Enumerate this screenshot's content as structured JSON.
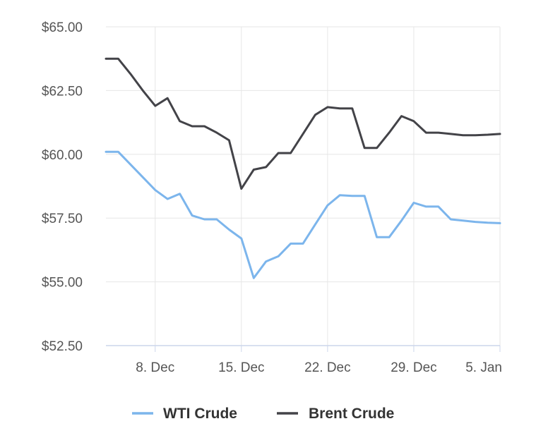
{
  "chart_data": {
    "type": "line",
    "title": "",
    "xlabel": "",
    "ylabel": "",
    "x_ticks": [
      "8. Dec",
      "15. Dec",
      "22. Dec",
      "29. Dec",
      "5. Jan"
    ],
    "x_tick_dates": [
      "2017-12-08",
      "2017-12-15",
      "2017-12-22",
      "2017-12-29",
      "2018-01-05"
    ],
    "x_range": [
      "2017-12-04",
      "2018-01-05"
    ],
    "y_ticks": [
      "$52.50",
      "$55.00",
      "$57.50",
      "$60.00",
      "$62.50",
      "$65.00"
    ],
    "ylim": [
      52.5,
      65
    ],
    "grid": true,
    "legend_position": "bottom-center",
    "x": [
      "2017-12-04",
      "2017-12-05",
      "2017-12-06",
      "2017-12-07",
      "2017-12-08",
      "2017-12-09",
      "2017-12-10",
      "2017-12-11",
      "2017-12-12",
      "2017-12-13",
      "2017-12-14",
      "2017-12-15",
      "2017-12-16",
      "2017-12-17",
      "2017-12-18",
      "2017-12-19",
      "2017-12-20",
      "2017-12-21",
      "2017-12-22",
      "2017-12-23",
      "2017-12-24",
      "2017-12-25",
      "2017-12-26",
      "2017-12-27",
      "2017-12-28",
      "2017-12-29",
      "2017-12-30",
      "2017-12-31",
      "2018-01-01",
      "2018-01-02",
      "2018-01-03",
      "2018-01-04",
      "2018-01-05"
    ],
    "series": [
      {
        "name": "WTI Crude",
        "color": "#7cb5ec",
        "values": [
          60.1,
          60.1,
          59.6,
          59.1,
          58.6,
          58.25,
          58.45,
          57.6,
          57.45,
          57.45,
          57.05,
          56.7,
          55.15,
          55.8,
          56.0,
          56.5,
          56.5,
          57.25,
          58.0,
          58.4,
          58.37,
          58.37,
          56.75,
          56.75,
          57.4,
          58.1,
          57.95,
          57.95,
          57.45,
          57.4,
          57.35,
          57.32,
          57.3
        ]
      },
      {
        "name": "Brent Crude",
        "color": "#434348",
        "values": [
          63.75,
          63.75,
          63.15,
          62.5,
          61.9,
          62.2,
          61.3,
          61.1,
          61.1,
          60.85,
          60.55,
          58.65,
          59.4,
          59.5,
          60.05,
          60.05,
          60.8,
          61.55,
          61.85,
          61.8,
          61.8,
          60.25,
          60.25,
          60.85,
          61.5,
          61.3,
          60.85,
          60.85,
          60.8,
          60.75,
          60.75,
          60.77,
          60.8
        ]
      }
    ]
  }
}
